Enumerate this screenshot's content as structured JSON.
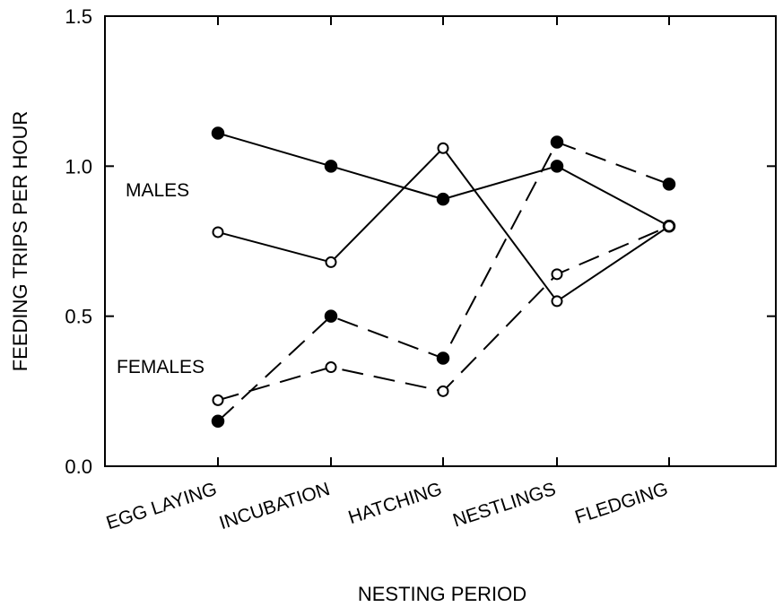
{
  "chart_data": {
    "type": "line",
    "title": "",
    "xlabel": "NESTING PERIOD",
    "ylabel": "FEEDING TRIPS PER HOUR",
    "categories": [
      "EGG LAYING",
      "INCUBATION",
      "HATCHING",
      "NESTLINGS",
      "FLEDGING"
    ],
    "ylim": [
      0,
      1.5
    ],
    "yticks": [
      0.0,
      0.5,
      1.0,
      1.5
    ],
    "ytick_labels": [
      "0.0",
      "0.5",
      "1.0",
      "1.5"
    ],
    "grid": false,
    "legend": "none",
    "annotations": [
      {
        "text": "MALES",
        "near": "left, y≈0.93"
      },
      {
        "text": "FEMALES",
        "near": "left, y≈0.34"
      }
    ],
    "series": [
      {
        "marker": "filled",
        "line": "solid",
        "values": [
          1.11,
          1.0,
          0.89,
          1.0,
          0.8
        ]
      },
      {
        "marker": "open",
        "line": "solid",
        "values": [
          0.78,
          0.68,
          1.06,
          0.55,
          0.8
        ]
      },
      {
        "marker": "filled",
        "line": "dashed",
        "values": [
          0.15,
          0.5,
          0.36,
          1.08,
          0.94
        ]
      },
      {
        "marker": "open",
        "line": "dashed",
        "values": [
          0.22,
          0.33,
          0.25,
          0.64,
          0.8
        ]
      }
    ]
  }
}
